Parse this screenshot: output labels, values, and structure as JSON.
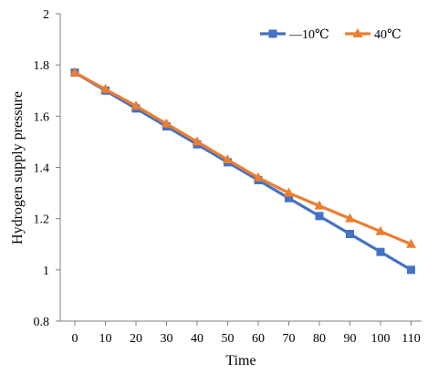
{
  "chart_data": {
    "type": "line",
    "title": "",
    "xlabel": "Time",
    "ylabel": "Hydrogen supply pressure",
    "x": [
      0,
      10,
      20,
      30,
      40,
      50,
      60,
      70,
      80,
      90,
      100,
      110
    ],
    "x_ticks": [
      "0",
      "10",
      "20",
      "30",
      "40",
      "50",
      "60",
      "70",
      "80",
      "90",
      "100",
      "110"
    ],
    "ylim": [
      0.8,
      2
    ],
    "y_ticks": [
      "0.8",
      "1",
      "1.2",
      "1.4",
      "1.6",
      "1.8",
      "2"
    ],
    "grid": false,
    "legend_position": "top-right",
    "series": [
      {
        "name": "—10℃",
        "color": "#4472C4",
        "marker": "square",
        "values": [
          1.77,
          1.7,
          1.63,
          1.56,
          1.49,
          1.42,
          1.35,
          1.28,
          1.21,
          1.14,
          1.07,
          1.0
        ]
      },
      {
        "name": "40℃",
        "color": "#ED7D31",
        "marker": "triangle",
        "values": [
          1.77,
          1.705,
          1.64,
          1.57,
          1.5,
          1.43,
          1.36,
          1.3,
          1.25,
          1.2,
          1.15,
          1.1
        ]
      }
    ]
  }
}
